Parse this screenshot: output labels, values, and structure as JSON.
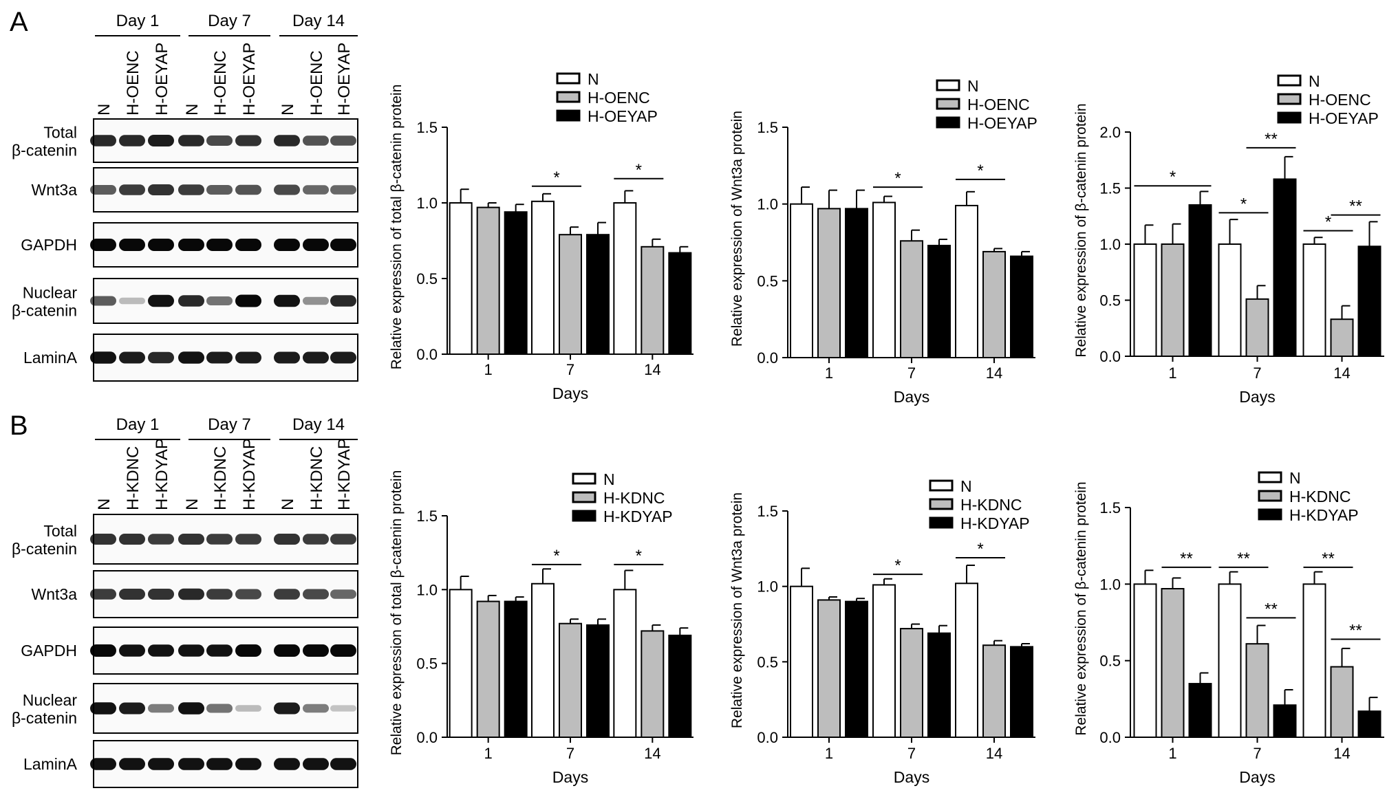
{
  "panels": [
    {
      "letter": "A",
      "day_labels": [
        "Day 1",
        "Day 7",
        "Day 14"
      ],
      "lane_labels": [
        "N",
        "H-OENC",
        "H-OEYAP",
        "N",
        "H-OENC",
        "H-OEYAP",
        "N",
        "H-OENC",
        "H-OEYAP"
      ],
      "blots": [
        {
          "label": [
            "Total",
            "β-catenin"
          ],
          "intensity": [
            0.85,
            0.85,
            0.9,
            0.85,
            0.7,
            0.8,
            0.85,
            0.65,
            0.65
          ]
        },
        {
          "label": [
            "Wnt3a"
          ],
          "intensity": [
            0.6,
            0.75,
            0.8,
            0.75,
            0.6,
            0.65,
            0.7,
            0.55,
            0.55
          ]
        },
        {
          "label": [
            "GAPDH"
          ],
          "intensity": [
            1,
            1,
            1,
            1,
            1,
            1,
            1,
            1,
            1
          ]
        },
        {
          "label": [
            "Nuclear",
            "β-catenin"
          ],
          "intensity": [
            0.6,
            0.15,
            0.95,
            0.85,
            0.5,
            1,
            0.95,
            0.35,
            0.85
          ]
        },
        {
          "label": [
            "LaminA"
          ],
          "intensity": [
            0.95,
            0.9,
            0.85,
            0.95,
            0.9,
            0.9,
            0.9,
            0.9,
            0.9
          ]
        }
      ]
    },
    {
      "letter": "B",
      "day_labels": [
        "Day 1",
        "Day 7",
        "Day 14"
      ],
      "lane_labels": [
        "N",
        "H-KDNC",
        "H-KDYAP",
        "N",
        "H-KDNC",
        "H-KDYAP",
        "N",
        "H-KDNC",
        "H-KDYAP"
      ],
      "blots": [
        {
          "label": [
            "Total",
            "β-catenin"
          ],
          "intensity": [
            0.8,
            0.8,
            0.75,
            0.8,
            0.75,
            0.75,
            0.8,
            0.75,
            0.75
          ]
        },
        {
          "label": [
            "Wnt3a"
          ],
          "intensity": [
            0.75,
            0.8,
            0.8,
            0.85,
            0.75,
            0.7,
            0.75,
            0.7,
            0.55
          ]
        },
        {
          "label": [
            "GAPDH"
          ],
          "intensity": [
            1,
            0.95,
            0.95,
            0.95,
            0.95,
            1,
            1,
            1,
            1
          ]
        },
        {
          "label": [
            "Nuclear",
            "β-catenin"
          ],
          "intensity": [
            0.95,
            0.9,
            0.45,
            0.95,
            0.5,
            0.15,
            0.9,
            0.45,
            0.12
          ]
        },
        {
          "label": [
            "LaminA"
          ],
          "intensity": [
            0.95,
            0.95,
            0.95,
            0.95,
            0.95,
            0.95,
            0.95,
            0.95,
            0.95
          ]
        }
      ]
    }
  ],
  "series_colors": [
    "#ffffff",
    "#bdbdbd",
    "#000000"
  ],
  "chart_data": [
    {
      "type": "bar",
      "panel": "A",
      "categories": [
        "1",
        "7",
        "14"
      ],
      "xlabel": "Days",
      "ylabel": "Relative expression of total β-catenin protein",
      "ylim": [
        0,
        1.5
      ],
      "yticks": [
        "0.0",
        "0.5",
        "1.0",
        "1.5"
      ],
      "legend": "top-right",
      "series": [
        {
          "name": "N",
          "values": [
            1.0,
            1.01,
            1.0
          ],
          "errors": [
            0.09,
            0.05,
            0.08
          ]
        },
        {
          "name": "H-OENC",
          "values": [
            0.97,
            0.79,
            0.71
          ],
          "errors": [
            0.03,
            0.05,
            0.05
          ]
        },
        {
          "name": "H-OEYAP",
          "values": [
            0.94,
            0.79,
            0.67
          ],
          "errors": [
            0.05,
            0.08,
            0.04
          ]
        }
      ],
      "significance": [
        {
          "category": 1,
          "from": 0,
          "to": 1,
          "at": 1.11,
          "label": "*"
        },
        {
          "category": 2,
          "from": 0,
          "to": 1,
          "at": 1.16,
          "label": "*"
        }
      ]
    },
    {
      "type": "bar",
      "panel": "A",
      "categories": [
        "1",
        "7",
        "14"
      ],
      "xlabel": "Days",
      "ylabel": "Relative expression of Wnt3a protein",
      "ylim": [
        0,
        1.5
      ],
      "yticks": [
        "0.0",
        "0.5",
        "1.0",
        "1.5"
      ],
      "legend": "top-right",
      "series": [
        {
          "name": "N",
          "values": [
            1.0,
            1.01,
            0.99
          ],
          "errors": [
            0.11,
            0.04,
            0.09
          ]
        },
        {
          "name": "H-OENC",
          "values": [
            0.97,
            0.76,
            0.69
          ],
          "errors": [
            0.12,
            0.07,
            0.02
          ]
        },
        {
          "name": "H-OEYAP",
          "values": [
            0.97,
            0.73,
            0.66
          ],
          "errors": [
            0.12,
            0.04,
            0.03
          ]
        }
      ],
      "significance": [
        {
          "category": 1,
          "from": 0,
          "to": 1,
          "at": 1.11,
          "label": "*"
        },
        {
          "category": 2,
          "from": 0,
          "to": 1,
          "at": 1.16,
          "label": "*"
        }
      ]
    },
    {
      "type": "bar",
      "panel": "A",
      "categories": [
        "1",
        "7",
        "14"
      ],
      "xlabel": "Days",
      "ylabel": "Relative expression of β-catenin protein",
      "ylim": [
        0,
        2.0
      ],
      "yticks": [
        "0.0",
        "0.5",
        "1.0",
        "1.5",
        "2.0"
      ],
      "legend": "top-right",
      "series": [
        {
          "name": "N",
          "values": [
            1.0,
            1.0,
            1.0
          ],
          "errors": [
            0.17,
            0.22,
            0.06
          ]
        },
        {
          "name": "H-OENC",
          "values": [
            1.0,
            0.51,
            0.33
          ],
          "errors": [
            0.18,
            0.12,
            0.12
          ]
        },
        {
          "name": "H-OEYAP",
          "values": [
            1.35,
            1.58,
            0.98
          ],
          "errors": [
            0.12,
            0.2,
            0.22
          ]
        }
      ],
      "significance": [
        {
          "category": 0,
          "from": 0,
          "to": 2,
          "at": 1.52,
          "label": "*"
        },
        {
          "category": 1,
          "from": 0,
          "to": 1,
          "at": 1.28,
          "label": "*"
        },
        {
          "category": 1,
          "from": 1,
          "to": 2,
          "at": 1.86,
          "label": "**"
        },
        {
          "category": 2,
          "from": 0,
          "to": 1,
          "at": 1.12,
          "label": "*"
        },
        {
          "category": 2,
          "from": 1,
          "to": 2,
          "at": 1.26,
          "label": "**"
        }
      ]
    },
    {
      "type": "bar",
      "panel": "B",
      "categories": [
        "1",
        "7",
        "14"
      ],
      "xlabel": "Days",
      "ylabel": "Relative expression of total β-catenin protein",
      "ylim": [
        0,
        1.5
      ],
      "yticks": [
        "0.0",
        "0.5",
        "1.0",
        "1.5"
      ],
      "legend": "top-right",
      "series": [
        {
          "name": "N",
          "values": [
            1.0,
            1.04,
            1.0
          ],
          "errors": [
            0.09,
            0.1,
            0.13
          ]
        },
        {
          "name": "H-KDNC",
          "values": [
            0.92,
            0.77,
            0.72
          ],
          "errors": [
            0.04,
            0.03,
            0.04
          ]
        },
        {
          "name": "H-KDYAP",
          "values": [
            0.92,
            0.76,
            0.69
          ],
          "errors": [
            0.03,
            0.04,
            0.05
          ]
        }
      ],
      "significance": [
        {
          "category": 1,
          "from": 0,
          "to": 1,
          "at": 1.17,
          "label": "*"
        },
        {
          "category": 2,
          "from": 0,
          "to": 1,
          "at": 1.17,
          "label": "*"
        }
      ]
    },
    {
      "type": "bar",
      "panel": "B",
      "categories": [
        "1",
        "7",
        "14"
      ],
      "xlabel": "Days",
      "ylabel": "Relative expression of Wnt3a protein",
      "ylim": [
        0,
        1.5
      ],
      "yticks": [
        "0.0",
        "0.5",
        "1.0",
        "1.5"
      ],
      "legend": "top-right",
      "series": [
        {
          "name": "N",
          "values": [
            1.0,
            1.01,
            1.02
          ],
          "errors": [
            0.12,
            0.04,
            0.12
          ]
        },
        {
          "name": "H-KDNC",
          "values": [
            0.91,
            0.72,
            0.61
          ],
          "errors": [
            0.02,
            0.03,
            0.03
          ]
        },
        {
          "name": "H-KDYAP",
          "values": [
            0.9,
            0.69,
            0.6
          ],
          "errors": [
            0.02,
            0.05,
            0.02
          ]
        }
      ],
      "significance": [
        {
          "category": 1,
          "from": 0,
          "to": 1,
          "at": 1.08,
          "label": "*"
        },
        {
          "category": 2,
          "from": 0,
          "to": 1,
          "at": 1.19,
          "label": "*"
        }
      ]
    },
    {
      "type": "bar",
      "panel": "B",
      "categories": [
        "1",
        "7",
        "14"
      ],
      "xlabel": "Days",
      "ylabel": "Relative expression of β-catenin protein",
      "ylim": [
        0,
        1.5
      ],
      "yticks": [
        "0.0",
        "0.5",
        "1.0",
        "1.5"
      ],
      "legend": "top-right",
      "series": [
        {
          "name": "N",
          "values": [
            1.0,
            1.0,
            1.0
          ],
          "errors": [
            0.09,
            0.08,
            0.08
          ]
        },
        {
          "name": "H-KDNC",
          "values": [
            0.97,
            0.61,
            0.46
          ],
          "errors": [
            0.07,
            0.12,
            0.12
          ]
        },
        {
          "name": "H-KDYAP",
          "values": [
            0.35,
            0.21,
            0.17
          ],
          "errors": [
            0.07,
            0.1,
            0.09
          ]
        }
      ],
      "significance": [
        {
          "category": 0,
          "from": 1,
          "to": 2,
          "at": 1.11,
          "label": "**"
        },
        {
          "category": 1,
          "from": 0,
          "to": 1,
          "at": 1.11,
          "label": "**"
        },
        {
          "category": 1,
          "from": 1,
          "to": 2,
          "at": 0.78,
          "label": "**"
        },
        {
          "category": 2,
          "from": 0,
          "to": 1,
          "at": 1.11,
          "label": "**"
        },
        {
          "category": 2,
          "from": 1,
          "to": 2,
          "at": 0.64,
          "label": "**"
        }
      ]
    }
  ]
}
